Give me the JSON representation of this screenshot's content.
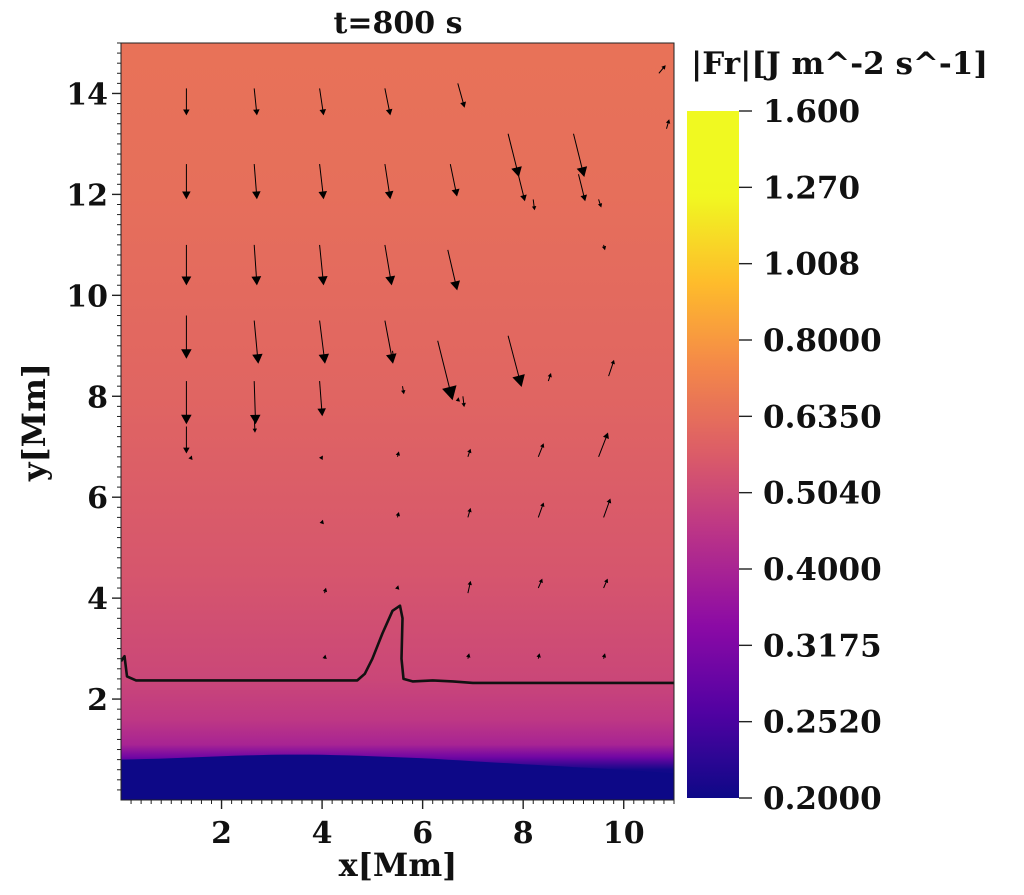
{
  "chart_data": {
    "type": "heatmap",
    "title": "t=800 s",
    "xlabel": "x[Mm]",
    "ylabel": "y[Mm]",
    "xlim": [
      0,
      11
    ],
    "ylim": [
      0,
      15
    ],
    "x_ticks": [
      {
        "value": 2,
        "label": "2"
      },
      {
        "value": 4,
        "label": "4"
      },
      {
        "value": 6,
        "label": "6"
      },
      {
        "value": 8,
        "label": "8"
      },
      {
        "value": 10,
        "label": "10"
      }
    ],
    "y_ticks": [
      {
        "value": 2,
        "label": "2"
      },
      {
        "value": 4,
        "label": "4"
      },
      {
        "value": 6,
        "label": "6"
      },
      {
        "value": 8,
        "label": "8"
      },
      {
        "value": 10,
        "label": "10"
      },
      {
        "value": 12,
        "label": "12"
      },
      {
        "value": 14,
        "label": "14"
      }
    ],
    "colorbar": {
      "label": "|Fr|[J m^-2 s^-1]",
      "min": 0.2,
      "max": 1.6,
      "colormap": "plasma",
      "ticks": [
        {
          "value": 1.6,
          "label": "1.600"
        },
        {
          "value": 1.27,
          "label": "1.270"
        },
        {
          "value": 1.008,
          "label": "1.008"
        },
        {
          "value": 0.8,
          "label": "0.8000"
        },
        {
          "value": 0.635,
          "label": "0.6350"
        },
        {
          "value": 0.504,
          "label": "0.5040"
        },
        {
          "value": 0.4,
          "label": "0.4000"
        },
        {
          "value": 0.3175,
          "label": "0.3175"
        },
        {
          "value": 0.252,
          "label": "0.2520"
        },
        {
          "value": 0.2,
          "label": "0.2000"
        }
      ]
    },
    "field_profile": [
      {
        "y": 0.0,
        "value": 0.2
      },
      {
        "y": 0.6,
        "value": 0.205
      },
      {
        "y": 0.85,
        "value": 0.3
      },
      {
        "y": 1.1,
        "value": 0.4
      },
      {
        "y": 1.6,
        "value": 0.46
      },
      {
        "y": 2.4,
        "value": 0.5
      },
      {
        "y": 4.5,
        "value": 0.55
      },
      {
        "y": 8.0,
        "value": 0.6
      },
      {
        "y": 12.0,
        "value": 0.635
      },
      {
        "y": 15.0,
        "value": 0.65
      }
    ],
    "contour": [
      [
        0.0,
        2.75
      ],
      [
        0.07,
        2.85
      ],
      [
        0.12,
        2.45
      ],
      [
        0.3,
        2.37
      ],
      [
        2.0,
        2.37
      ],
      [
        4.0,
        2.37
      ],
      [
        4.7,
        2.37
      ],
      [
        4.85,
        2.5
      ],
      [
        5.0,
        2.8
      ],
      [
        5.2,
        3.3
      ],
      [
        5.4,
        3.75
      ],
      [
        5.55,
        3.85
      ],
      [
        5.6,
        3.6
      ],
      [
        5.58,
        2.8
      ],
      [
        5.62,
        2.4
      ],
      [
        5.8,
        2.35
      ],
      [
        6.2,
        2.37
      ],
      [
        6.6,
        2.35
      ],
      [
        7.0,
        2.32
      ],
      [
        8.5,
        2.32
      ],
      [
        10.0,
        2.32
      ],
      [
        11.0,
        2.32
      ]
    ],
    "vectors": [
      {
        "x": 1.3,
        "y": 14.1,
        "u": 0.0,
        "v": -1.0
      },
      {
        "x": 2.65,
        "y": 14.1,
        "u": 0.1,
        "v": -1.0
      },
      {
        "x": 3.95,
        "y": 14.1,
        "u": 0.15,
        "v": -1.0
      },
      {
        "x": 5.25,
        "y": 14.1,
        "u": 0.2,
        "v": -1.0
      },
      {
        "x": 6.7,
        "y": 14.2,
        "u": 0.25,
        "v": -0.9
      },
      {
        "x": 7.7,
        "y": 13.2,
        "u": 0.4,
        "v": -1.6
      },
      {
        "x": 9.0,
        "y": 13.2,
        "u": 0.4,
        "v": -1.6
      },
      {
        "x": 10.7,
        "y": 14.4,
        "u": 0.25,
        "v": 0.3
      },
      {
        "x": 10.85,
        "y": 13.3,
        "u": 0.1,
        "v": 0.35
      },
      {
        "x": 1.3,
        "y": 12.6,
        "u": 0.0,
        "v": -1.3
      },
      {
        "x": 2.65,
        "y": 12.6,
        "u": 0.1,
        "v": -1.3
      },
      {
        "x": 3.95,
        "y": 12.6,
        "u": 0.15,
        "v": -1.3
      },
      {
        "x": 5.25,
        "y": 12.6,
        "u": 0.2,
        "v": -1.3
      },
      {
        "x": 6.55,
        "y": 12.6,
        "u": 0.25,
        "v": -1.2
      },
      {
        "x": 7.9,
        "y": 12.4,
        "u": 0.25,
        "v": -1.0
      },
      {
        "x": 9.1,
        "y": 12.4,
        "u": 0.25,
        "v": -1.0
      },
      {
        "x": 8.2,
        "y": 11.9,
        "u": 0.05,
        "v": -0.4
      },
      {
        "x": 9.5,
        "y": 11.9,
        "u": 0.1,
        "v": -0.3
      },
      {
        "x": 1.3,
        "y": 11.0,
        "u": 0.0,
        "v": -1.5
      },
      {
        "x": 2.65,
        "y": 11.0,
        "u": 0.1,
        "v": -1.5
      },
      {
        "x": 3.95,
        "y": 11.0,
        "u": 0.15,
        "v": -1.5
      },
      {
        "x": 5.25,
        "y": 11.0,
        "u": 0.25,
        "v": -1.5
      },
      {
        "x": 6.5,
        "y": 10.9,
        "u": 0.35,
        "v": -1.5
      },
      {
        "x": 9.6,
        "y": 11.0,
        "u": 0.05,
        "v": -0.2
      },
      {
        "x": 1.3,
        "y": 9.6,
        "u": 0.0,
        "v": -1.6
      },
      {
        "x": 2.65,
        "y": 9.5,
        "u": 0.15,
        "v": -1.6
      },
      {
        "x": 3.95,
        "y": 9.5,
        "u": 0.2,
        "v": -1.6
      },
      {
        "x": 5.25,
        "y": 9.5,
        "u": 0.3,
        "v": -1.6
      },
      {
        "x": 6.3,
        "y": 9.1,
        "u": 0.55,
        "v": -2.2
      },
      {
        "x": 7.7,
        "y": 9.2,
        "u": 0.5,
        "v": -1.9
      },
      {
        "x": 5.4,
        "y": 8.9,
        "u": 0.05,
        "v": -0.3
      },
      {
        "x": 1.3,
        "y": 8.3,
        "u": 0.0,
        "v": -1.6
      },
      {
        "x": 2.65,
        "y": 8.3,
        "u": 0.05,
        "v": -1.6
      },
      {
        "x": 3.95,
        "y": 8.3,
        "u": 0.1,
        "v": -1.3
      },
      {
        "x": 5.6,
        "y": 8.2,
        "u": 0.05,
        "v": -0.3
      },
      {
        "x": 6.8,
        "y": 8.0,
        "u": 0.05,
        "v": -0.4
      },
      {
        "x": 8.5,
        "y": 8.3,
        "u": 0.1,
        "v": 0.3
      },
      {
        "x": 9.7,
        "y": 8.4,
        "u": 0.2,
        "v": 0.6
      },
      {
        "x": 1.3,
        "y": 7.4,
        "u": 0.0,
        "v": -1.0
      },
      {
        "x": 2.65,
        "y": 7.6,
        "u": 0.03,
        "v": -0.6
      },
      {
        "x": 6.7,
        "y": 7.9,
        "u": 0.03,
        "v": 0.15
      },
      {
        "x": 5.5,
        "y": 6.8,
        "u": 0.05,
        "v": 0.2
      },
      {
        "x": 6.9,
        "y": 6.8,
        "u": 0.1,
        "v": 0.3
      },
      {
        "x": 8.3,
        "y": 6.8,
        "u": 0.2,
        "v": 0.5
      },
      {
        "x": 9.5,
        "y": 6.8,
        "u": 0.35,
        "v": 0.9
      },
      {
        "x": 1.4,
        "y": 6.8,
        "u": 0.02,
        "v": 0.05
      },
      {
        "x": 4.0,
        "y": 6.8,
        "u": 0.03,
        "v": 0.05
      },
      {
        "x": 5.5,
        "y": 5.6,
        "u": 0.05,
        "v": 0.2
      },
      {
        "x": 6.9,
        "y": 5.6,
        "u": 0.1,
        "v": 0.35
      },
      {
        "x": 8.3,
        "y": 5.6,
        "u": 0.2,
        "v": 0.55
      },
      {
        "x": 9.6,
        "y": 5.6,
        "u": 0.25,
        "v": 0.7
      },
      {
        "x": 4.0,
        "y": 5.5,
        "u": 0.03,
        "v": 0.1
      },
      {
        "x": 6.9,
        "y": 4.1,
        "u": 0.1,
        "v": 0.45
      },
      {
        "x": 8.3,
        "y": 4.2,
        "u": 0.15,
        "v": 0.35
      },
      {
        "x": 9.6,
        "y": 4.2,
        "u": 0.15,
        "v": 0.35
      },
      {
        "x": 4.05,
        "y": 4.1,
        "u": 0.05,
        "v": 0.2
      },
      {
        "x": 5.5,
        "y": 4.2,
        "u": 0.03,
        "v": 0.1
      },
      {
        "x": 6.9,
        "y": 2.8,
        "u": 0.05,
        "v": 0.2
      },
      {
        "x": 8.3,
        "y": 2.8,
        "u": 0.05,
        "v": 0.2
      },
      {
        "x": 9.6,
        "y": 2.8,
        "u": 0.05,
        "v": 0.2
      },
      {
        "x": 4.05,
        "y": 2.8,
        "u": 0.03,
        "v": 0.15
      }
    ],
    "vector_color": "#000000",
    "contour_color": "#111111"
  }
}
